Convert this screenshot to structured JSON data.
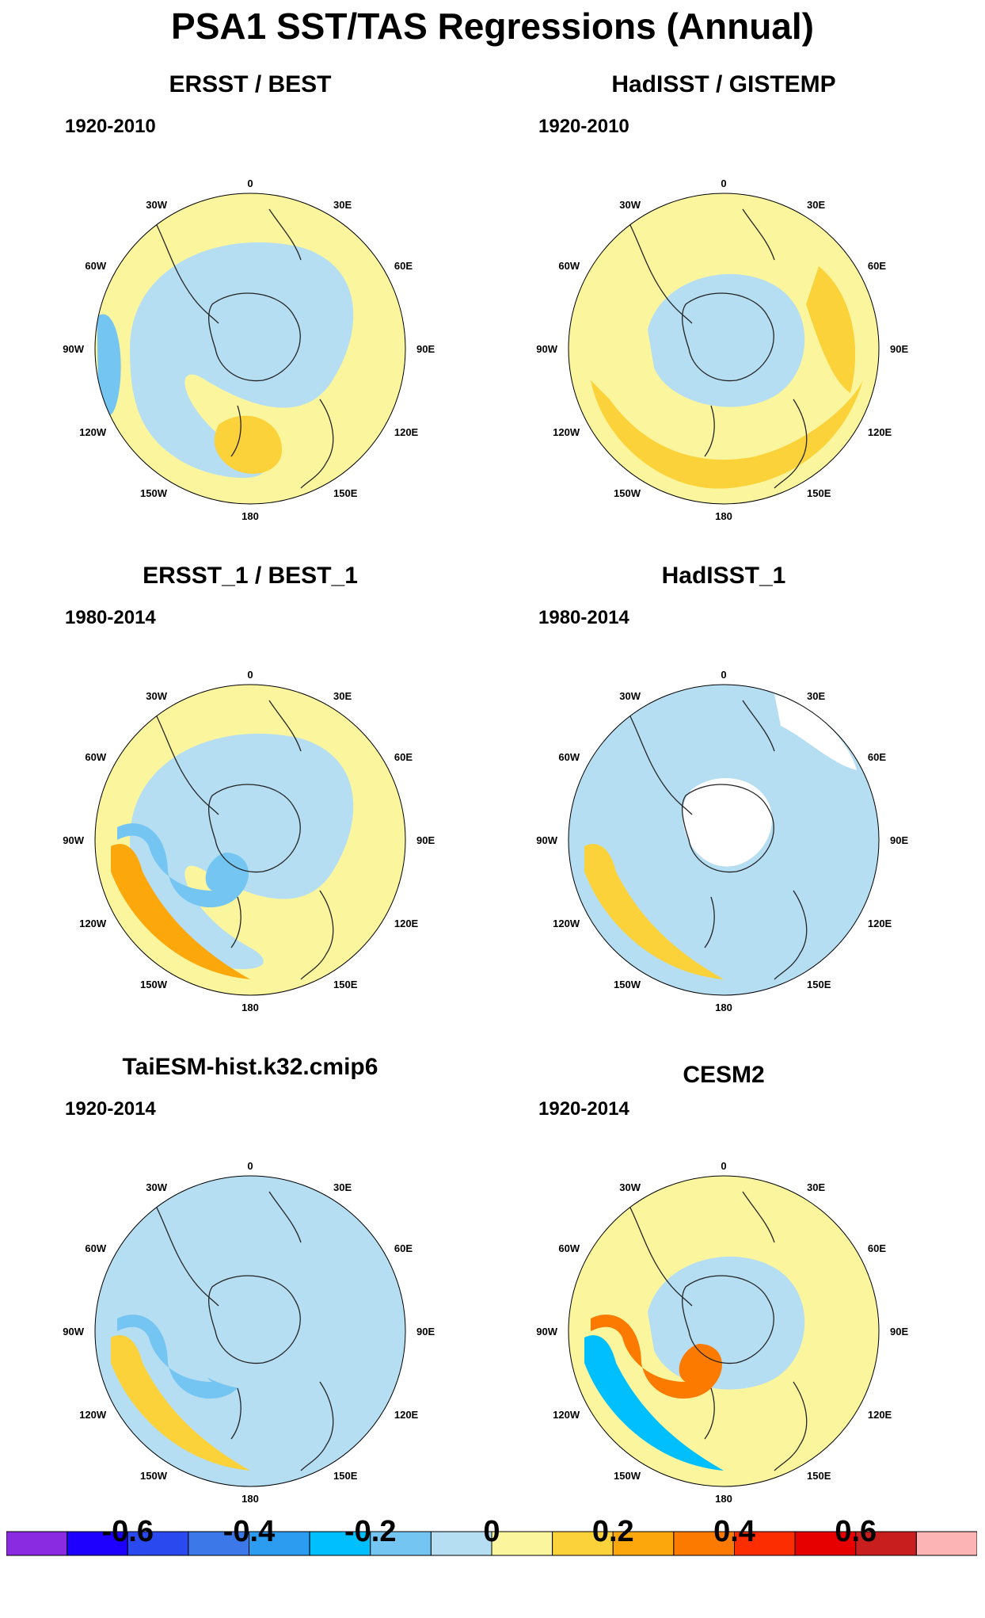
{
  "title": "PSA1 SST/TAS Regressions (Annual)",
  "lon_labels": {
    "top": "0",
    "ne30": "30E",
    "ne60": "60E",
    "e90": "90E",
    "se120": "120E",
    "se150": "150E",
    "bottom": "180",
    "sw150": "150W",
    "sw120": "120W",
    "w90": "90W",
    "nw60": "60W",
    "nw30": "30W"
  },
  "panels": [
    {
      "title": "ERSST / BEST",
      "period": "1920-2010",
      "background": "#fbf69e",
      "blobs": [
        {
          "level": "0",
          "shape": "ring-west"
        },
        {
          "level": "-0.1",
          "shape": "westedge"
        },
        {
          "level": "0.1",
          "shape": "small-south"
        }
      ]
    },
    {
      "title": "HadISST / GISTEMP",
      "period": "1920-2010",
      "background": "#fbf69e",
      "blobs": [
        {
          "level": "0.1",
          "shape": "southband"
        },
        {
          "level": "0",
          "shape": "innerring"
        },
        {
          "level": "0.1",
          "shape": "eastpatch"
        }
      ]
    },
    {
      "title": "ERSST_1 / BEST_1",
      "period": "1980-2014",
      "background": "#fbf69e",
      "blobs": [
        {
          "level": "0",
          "shape": "ring-west"
        },
        {
          "level": "-0.1",
          "shape": "westcurl"
        },
        {
          "level": "0.2",
          "shape": "southwestband"
        }
      ]
    },
    {
      "title": "HadISST_1",
      "period": "1980-2014",
      "background": "#b5def2",
      "blobs": [
        {
          "level": "0.1",
          "shape": "southwestband"
        },
        {
          "level": "missing",
          "shape": "antarctic"
        },
        {
          "level": "missing",
          "shape": "missing-ne"
        }
      ]
    },
    {
      "title": "TaiESM-hist.k32.cmip6",
      "period": "1920-2014",
      "background": "#b5def2",
      "blobs": [
        {
          "level": "-0.1",
          "shape": "westcurl"
        },
        {
          "level": "0.1",
          "shape": "southwestband"
        },
        {
          "level": "0",
          "shape": "innerring"
        }
      ]
    },
    {
      "title": "CESM2",
      "period": "1920-2014",
      "background": "#fbf69e",
      "blobs": [
        {
          "level": "0",
          "shape": "innerring"
        },
        {
          "level": "-0.2",
          "shape": "southwestband"
        },
        {
          "level": "0.3",
          "shape": "westcurl"
        }
      ]
    }
  ],
  "colorbar": {
    "colors": [
      "#8a2be2",
      "#1e00ff",
      "#2a4af0",
      "#3c78e8",
      "#2b9cf0",
      "#00bfff",
      "#74c5f2",
      "#b5def2",
      "#fbf69e",
      "#fcd23a",
      "#fca80c",
      "#fc7a00",
      "#fc2d00",
      "#e60000",
      "#c81e1e",
      "#fcb4b4"
    ],
    "labels": [
      "-0.6",
      "-0.4",
      "-0.2",
      "0",
      "0.2",
      "0.4",
      "0.6"
    ],
    "label_values": [
      -0.6,
      -0.4,
      -0.2,
      0,
      0.2,
      0.4,
      0.6
    ]
  }
}
